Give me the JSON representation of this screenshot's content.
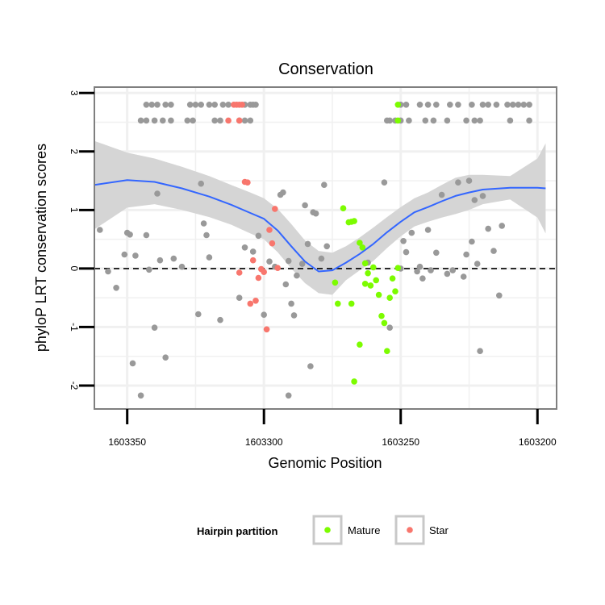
{
  "chart_data": {
    "type": "scatter",
    "title": "Conservation",
    "xlabel": "Genomic Position",
    "ylabel": "phyloP LRT conservation scores",
    "xlim": [
      1603362,
      1603193
    ],
    "x_reversed": true,
    "ylim": [
      -2.4,
      3.1
    ],
    "x_ticks": [
      1603350,
      1603300,
      1603250,
      1603200
    ],
    "x_tick_labels": [
      "1603350",
      "1603300",
      "1603250",
      "1603200"
    ],
    "y_ticks": [
      -2,
      -1,
      0,
      1,
      2,
      3
    ],
    "y_tick_labels": [
      "-2",
      "-1",
      "0",
      "1",
      "2",
      "3"
    ],
    "reference_line": {
      "y": 0,
      "style": "dashed",
      "color": "#000000"
    },
    "grid": true,
    "background": "#ffffff",
    "grid_color": "#f0f0f0",
    "legend": {
      "title": "Hairpin partition",
      "placement": "bottom",
      "items": [
        {
          "label": "Mature",
          "color": "#7CFC00"
        },
        {
          "label": "Star",
          "color": "#F8766D"
        }
      ]
    },
    "series": [
      {
        "color": "#999999",
        "points": [
          [
            1603343,
            2.8
          ],
          [
            1603341,
            2.8
          ],
          [
            1603339,
            2.8
          ],
          [
            1603336,
            2.8
          ],
          [
            1603334,
            2.8
          ],
          [
            1603327,
            2.8
          ],
          [
            1603325,
            2.8
          ],
          [
            1603323,
            2.8
          ],
          [
            1603320,
            2.8
          ],
          [
            1603318,
            2.8
          ],
          [
            1603315,
            2.8
          ],
          [
            1603313,
            2.8
          ],
          [
            1603307,
            2.8
          ],
          [
            1603305,
            2.8
          ],
          [
            1603304,
            2.8
          ],
          [
            1603303,
            2.8
          ],
          [
            1603250,
            2.8
          ],
          [
            1603248,
            2.8
          ],
          [
            1603243,
            2.8
          ],
          [
            1603240,
            2.8
          ],
          [
            1603237,
            2.8
          ],
          [
            1603232,
            2.8
          ],
          [
            1603229,
            2.8
          ],
          [
            1603224,
            2.8
          ],
          [
            1603220,
            2.8
          ],
          [
            1603218,
            2.8
          ],
          [
            1603215,
            2.8
          ],
          [
            1603211,
            2.8
          ],
          [
            1603209,
            2.8
          ],
          [
            1603207,
            2.8
          ],
          [
            1603205,
            2.8
          ],
          [
            1603203,
            2.8
          ],
          [
            1603345,
            2.53
          ],
          [
            1603343,
            2.53
          ],
          [
            1603340,
            2.53
          ],
          [
            1603337,
            2.53
          ],
          [
            1603334,
            2.53
          ],
          [
            1603328,
            2.53
          ],
          [
            1603326,
            2.53
          ],
          [
            1603318,
            2.53
          ],
          [
            1603316,
            2.53
          ],
          [
            1603309,
            2.53
          ],
          [
            1603307,
            2.53
          ],
          [
            1603305,
            2.53
          ],
          [
            1603255,
            2.53
          ],
          [
            1603254,
            2.53
          ],
          [
            1603252,
            2.53
          ],
          [
            1603250,
            2.53
          ],
          [
            1603247,
            2.53
          ],
          [
            1603241,
            2.53
          ],
          [
            1603238,
            2.53
          ],
          [
            1603233,
            2.53
          ],
          [
            1603226,
            2.53
          ],
          [
            1603223,
            2.53
          ],
          [
            1603221,
            2.53
          ],
          [
            1603210,
            2.53
          ],
          [
            1603203,
            2.53
          ],
          [
            1603360,
            0.66
          ],
          [
            1603357,
            -0.05
          ],
          [
            1603354,
            -0.33
          ],
          [
            1603351,
            0.24
          ],
          [
            1603350,
            0.61
          ],
          [
            1603349,
            0.58
          ],
          [
            1603348,
            -1.62
          ],
          [
            1603347,
            0.22
          ],
          [
            1603345,
            -2.17
          ],
          [
            1603343,
            0.57
          ],
          [
            1603342,
            -0.02
          ],
          [
            1603340,
            -1.01
          ],
          [
            1603339,
            1.28
          ],
          [
            1603338,
            0.14
          ],
          [
            1603336,
            -1.52
          ],
          [
            1603333,
            0.17
          ],
          [
            1603330,
            0.03
          ],
          [
            1603324,
            -0.78
          ],
          [
            1603323,
            1.45
          ],
          [
            1603322,
            0.77
          ],
          [
            1603321,
            0.57
          ],
          [
            1603320,
            0.19
          ],
          [
            1603316,
            -0.88
          ],
          [
            1603309,
            -0.5
          ],
          [
            1603307,
            0.36
          ],
          [
            1603304,
            0.29
          ],
          [
            1603302,
            0.56
          ],
          [
            1603300,
            -0.79
          ],
          [
            1603298,
            0.12
          ],
          [
            1603296,
            0.03
          ],
          [
            1603294,
            1.26
          ],
          [
            1603293,
            1.3
          ],
          [
            1603292,
            -0.27
          ],
          [
            1603291,
            0.13
          ],
          [
            1603291,
            -2.17
          ],
          [
            1603290,
            -0.6
          ],
          [
            1603289,
            -0.8
          ],
          [
            1603288,
            -0.12
          ],
          [
            1603286,
            0.08
          ],
          [
            1603285,
            1.08
          ],
          [
            1603284,
            0.42
          ],
          [
            1603283,
            -1.67
          ],
          [
            1603282,
            0.96
          ],
          [
            1603281,
            0.94
          ],
          [
            1603279,
            0.17
          ],
          [
            1603278,
            1.43
          ],
          [
            1603277,
            0.38
          ],
          [
            1603262,
            0.1
          ],
          [
            1603256,
            1.47
          ],
          [
            1603254,
            -1.01
          ],
          [
            1603250,
            0.0
          ],
          [
            1603249,
            0.47
          ],
          [
            1603248,
            0.28
          ],
          [
            1603246,
            0.61
          ],
          [
            1603244,
            -0.05
          ],
          [
            1603243,
            0.03
          ],
          [
            1603242,
            -0.17
          ],
          [
            1603240,
            0.66
          ],
          [
            1603239,
            -0.03
          ],
          [
            1603237,
            0.27
          ],
          [
            1603235,
            1.26
          ],
          [
            1603233,
            -0.09
          ],
          [
            1603231,
            -0.03
          ],
          [
            1603229,
            1.47
          ],
          [
            1603227,
            -0.14
          ],
          [
            1603226,
            0.24
          ],
          [
            1603225,
            1.5
          ],
          [
            1603224,
            0.46
          ],
          [
            1603223,
            1.17
          ],
          [
            1603222,
            0.08
          ],
          [
            1603221,
            -1.41
          ],
          [
            1603220,
            1.24
          ],
          [
            1603218,
            0.68
          ],
          [
            1603216,
            0.3
          ],
          [
            1603214,
            -0.46
          ],
          [
            1603213,
            0.73
          ]
        ]
      },
      {
        "name": "Mature",
        "color": "#7CFC00",
        "points": [
          [
            1603251,
            2.8
          ],
          [
            1603251,
            2.53
          ],
          [
            1603271,
            1.03
          ],
          [
            1603269,
            0.79
          ],
          [
            1603268,
            0.8
          ],
          [
            1603267,
            0.81
          ],
          [
            1603265,
            0.44
          ],
          [
            1603264,
            0.36
          ],
          [
            1603263,
            0.09
          ],
          [
            1603263,
            -0.26
          ],
          [
            1603262,
            -0.08
          ],
          [
            1603261,
            -0.29
          ],
          [
            1603260,
            0.02
          ],
          [
            1603259,
            -0.2
          ],
          [
            1603258,
            -0.45
          ],
          [
            1603257,
            -0.81
          ],
          [
            1603256,
            -0.93
          ],
          [
            1603255,
            -1.41
          ],
          [
            1603254,
            -0.5
          ],
          [
            1603253,
            -0.17
          ],
          [
            1603252,
            -0.39
          ],
          [
            1603251,
            0.01
          ],
          [
            1603274,
            -0.24
          ],
          [
            1603273,
            -0.6
          ],
          [
            1603268,
            -0.6
          ],
          [
            1603267,
            -1.93
          ],
          [
            1603265,
            -1.3
          ]
        ]
      },
      {
        "name": "Star",
        "color": "#F8766D",
        "points": [
          [
            1603311,
            2.8
          ],
          [
            1603310,
            2.8
          ],
          [
            1603309,
            2.8
          ],
          [
            1603308,
            2.8
          ],
          [
            1603313,
            2.53
          ],
          [
            1603309,
            2.53
          ],
          [
            1603307,
            1.48
          ],
          [
            1603306,
            1.47
          ],
          [
            1603305,
            -0.6
          ],
          [
            1603304,
            0.14
          ],
          [
            1603303,
            -0.55
          ],
          [
            1603302,
            -0.16
          ],
          [
            1603301,
            -0.01
          ],
          [
            1603300,
            -0.06
          ],
          [
            1603299,
            -1.04
          ],
          [
            1603298,
            0.66
          ],
          [
            1603297,
            0.43
          ],
          [
            1603296,
            1.02
          ],
          [
            1603295,
            0.01
          ],
          [
            1603309,
            -0.07
          ]
        ]
      }
    ],
    "smooth": {
      "color": "#3366FF",
      "band_color": "#d3d3d3",
      "x": [
        1603362,
        1603350,
        1603340,
        1603330,
        1603320,
        1603312,
        1603305,
        1603300,
        1603295,
        1603290,
        1603285,
        1603280,
        1603275,
        1603270,
        1603265,
        1603260,
        1603255,
        1603250,
        1603245,
        1603240,
        1603235,
        1603230,
        1603225,
        1603220,
        1603210,
        1603200,
        1603197
      ],
      "y": [
        1.43,
        1.51,
        1.48,
        1.37,
        1.23,
        1.09,
        0.95,
        0.85,
        0.65,
        0.38,
        0.12,
        -0.05,
        -0.03,
        0.1,
        0.25,
        0.42,
        0.62,
        0.8,
        0.96,
        1.05,
        1.15,
        1.24,
        1.3,
        1.35,
        1.38,
        1.38,
        1.37
      ],
      "upper": [
        2.18,
        1.98,
        1.88,
        1.74,
        1.58,
        1.43,
        1.3,
        1.2,
        1.02,
        0.76,
        0.48,
        0.3,
        0.27,
        0.38,
        0.53,
        0.7,
        0.88,
        1.05,
        1.2,
        1.3,
        1.43,
        1.55,
        1.6,
        1.6,
        1.58,
        1.88,
        2.14
      ],
      "lower": [
        0.67,
        1.04,
        1.1,
        1.0,
        0.88,
        0.75,
        0.6,
        0.5,
        0.28,
        0.0,
        -0.25,
        -0.42,
        -0.45,
        -0.2,
        -0.03,
        0.13,
        0.35,
        0.55,
        0.72,
        0.8,
        0.87,
        0.93,
        1.0,
        1.1,
        1.18,
        0.87,
        0.6
      ]
    }
  }
}
